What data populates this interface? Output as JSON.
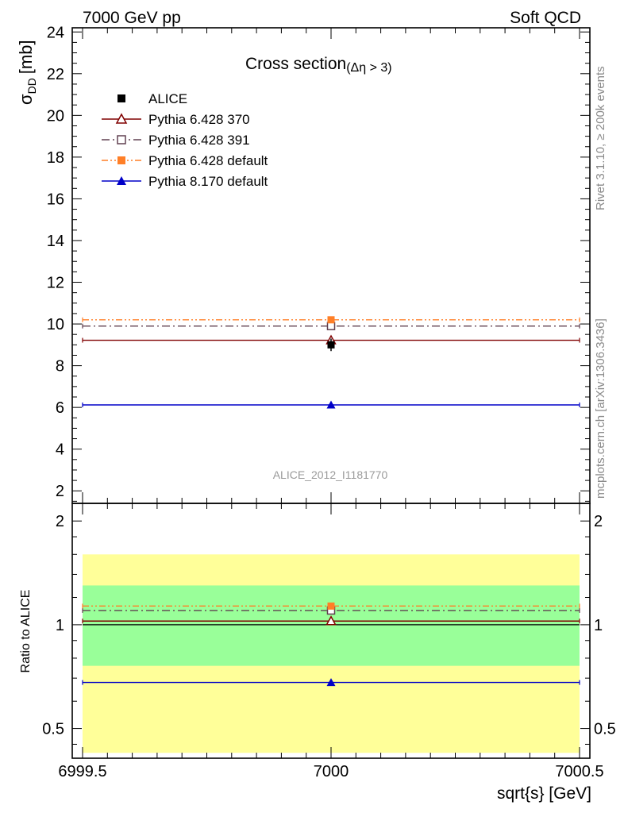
{
  "header": {
    "left": "7000 GeV pp",
    "right": "Soft QCD"
  },
  "side_labels": {
    "top": "Rivet 3.1.10, ≥ 200k events",
    "bottom": "mcplots.cern.ch [arXiv:1306.3436]"
  },
  "chart_data": [
    {
      "panel": "main",
      "type": "scatter",
      "title": "Cross section",
      "title_suffix": "(Δη > 3)",
      "ylabel_main": "σ",
      "ylabel_sub": "DD",
      "ylabel_unit": "[mb]",
      "ylim": [
        1.4,
        24.2
      ],
      "y_ticks": [
        "2",
        "4",
        "6",
        "8",
        "10",
        "12",
        "14",
        "16",
        "18",
        "20",
        "22",
        "24"
      ],
      "y_tick_values": [
        2,
        4,
        6,
        8,
        10,
        12,
        14,
        16,
        18,
        20,
        22,
        24
      ],
      "x": [
        7000
      ],
      "xlim": [
        6999.5,
        7000.5
      ],
      "watermark": "ALICE_2012_I1181770",
      "legend_position": "top-left",
      "series": [
        {
          "name": "ALICE",
          "values": [
            9.0
          ],
          "yerr": [
            0.3
          ],
          "color": "#000000",
          "marker": "filled-square",
          "line": "none"
        },
        {
          "name": "Pythia 6.428 370",
          "values": [
            9.22
          ],
          "color": "#800000",
          "marker": "open-triangle",
          "line": "solid"
        },
        {
          "name": "Pythia 6.428 391",
          "values": [
            9.9
          ],
          "color": "#604050",
          "marker": "open-square",
          "line": "dash-dot"
        },
        {
          "name": "Pythia 6.428 default",
          "values": [
            10.2
          ],
          "color": "#ff7f27",
          "marker": "filled-square",
          "line": "dash-dot-dot"
        },
        {
          "name": "Pythia 8.170 default",
          "values": [
            6.12
          ],
          "color": "#0000c8",
          "marker": "filled-triangle",
          "line": "solid"
        }
      ]
    },
    {
      "panel": "ratio",
      "type": "scatter",
      "ylabel": "Ratio to ALICE",
      "y_scale": "log",
      "ylim": [
        0.41,
        2.25
      ],
      "y_ticks": [
        "0.5",
        "1",
        "2"
      ],
      "y_tick_values": [
        0.5,
        1,
        2
      ],
      "xlabel": "sqrt{s} [GeV]",
      "x_ticks": [
        "6999.5",
        "7000",
        "7000.5"
      ],
      "x_tick_values": [
        6999.5,
        7000,
        7000.5
      ],
      "xlim": [
        6999.5,
        7000.5
      ],
      "x": [
        7000
      ],
      "bands": [
        {
          "name": "yellow",
          "range": [
            0.425,
            1.6
          ],
          "color": "#ffff99"
        },
        {
          "name": "green",
          "range": [
            0.76,
            1.3
          ],
          "color": "#99ff99"
        }
      ],
      "series": [
        {
          "name": "Pythia 6.428 370",
          "values": [
            1.025
          ],
          "color": "#800000",
          "marker": "open-triangle",
          "line": "solid"
        },
        {
          "name": "Pythia 6.428 391",
          "values": [
            1.1
          ],
          "color": "#604050",
          "marker": "open-square",
          "line": "dash-dot"
        },
        {
          "name": "Pythia 6.428 default",
          "values": [
            1.133
          ],
          "color": "#ff7f27",
          "marker": "filled-square",
          "line": "dash-dot-dot"
        },
        {
          "name": "Pythia 8.170 default",
          "values": [
            0.68
          ],
          "color": "#0000c8",
          "marker": "filled-triangle",
          "line": "solid"
        }
      ],
      "reference_line": 1
    }
  ]
}
